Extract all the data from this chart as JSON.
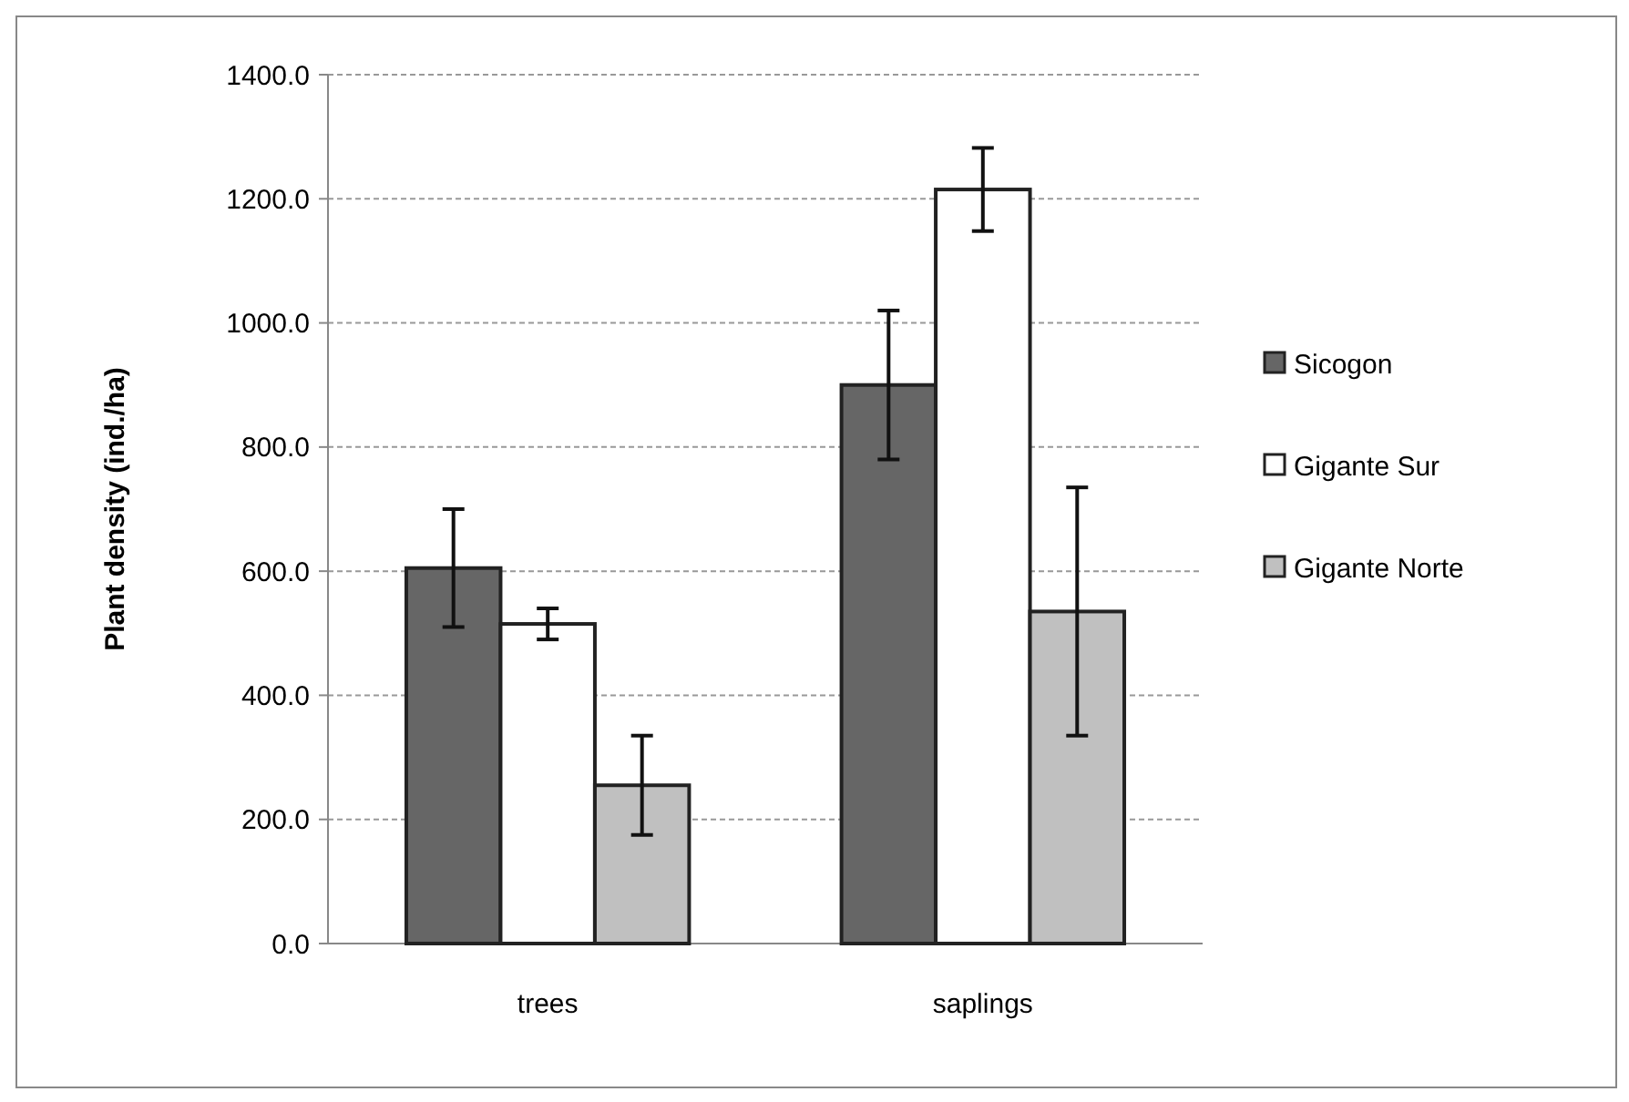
{
  "chart_data": {
    "type": "bar",
    "ylabel": "Plant density (ind./ha)",
    "categories": [
      "trees",
      "saplings"
    ],
    "series": [
      {
        "name": "Sicogon",
        "color": "#666666",
        "values": [
          605,
          900
        ],
        "errors": [
          95,
          120
        ]
      },
      {
        "name": "Gigante Sur",
        "color": "#ffffff",
        "values": [
          515,
          1215
        ],
        "errors": [
          25,
          67
        ]
      },
      {
        "name": "Gigante Norte",
        "color": "#c0c0c0",
        "values": [
          255,
          535
        ],
        "errors": [
          80,
          200
        ]
      }
    ],
    "ylim": [
      0,
      1400
    ],
    "yticks": [
      {
        "value": 0,
        "label": "0.0"
      },
      {
        "value": 200,
        "label": "200.0"
      },
      {
        "value": 400,
        "label": "400.0"
      },
      {
        "value": 600,
        "label": "600.0"
      },
      {
        "value": 800,
        "label": "800.0"
      },
      {
        "value": 1000,
        "label": "1000.0"
      },
      {
        "value": 1200,
        "label": "1200.0"
      },
      {
        "value": 1400,
        "label": "1400.0"
      }
    ],
    "grid": "y",
    "legend": "right"
  }
}
